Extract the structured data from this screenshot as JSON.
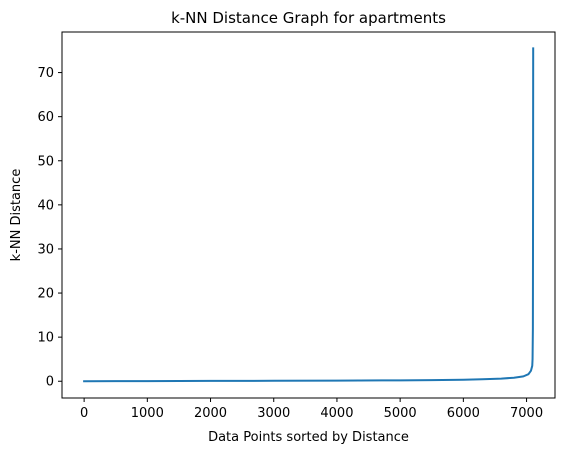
{
  "chart_data": {
    "type": "line",
    "title": "k-NN Distance Graph for apartments",
    "xlabel": "Data Points sorted by Distance",
    "ylabel": "k-NN Distance",
    "xlim": [
      -350,
      7450
    ],
    "ylim": [
      -3.8,
      79.2
    ],
    "x_ticks": [
      0,
      1000,
      2000,
      3000,
      4000,
      5000,
      6000,
      7000
    ],
    "y_ticks": [
      0,
      10,
      20,
      30,
      40,
      50,
      60,
      70
    ],
    "grid": false,
    "series": [
      {
        "color": "#1f77b4",
        "points": [
          [
            0,
            0.0
          ],
          [
            500,
            0.02
          ],
          [
            1000,
            0.04
          ],
          [
            2000,
            0.07
          ],
          [
            3000,
            0.1
          ],
          [
            4000,
            0.15
          ],
          [
            5000,
            0.2
          ],
          [
            5500,
            0.25
          ],
          [
            6000,
            0.35
          ],
          [
            6300,
            0.45
          ],
          [
            6600,
            0.6
          ],
          [
            6800,
            0.8
          ],
          [
            6950,
            1.1
          ],
          [
            7030,
            1.6
          ],
          [
            7070,
            2.4
          ],
          [
            7090,
            3.5
          ],
          [
            7095,
            5.0
          ],
          [
            7100,
            12.0
          ],
          [
            7102,
            30.0
          ],
          [
            7104,
            60.0
          ],
          [
            7105,
            75.5
          ]
        ]
      }
    ]
  }
}
